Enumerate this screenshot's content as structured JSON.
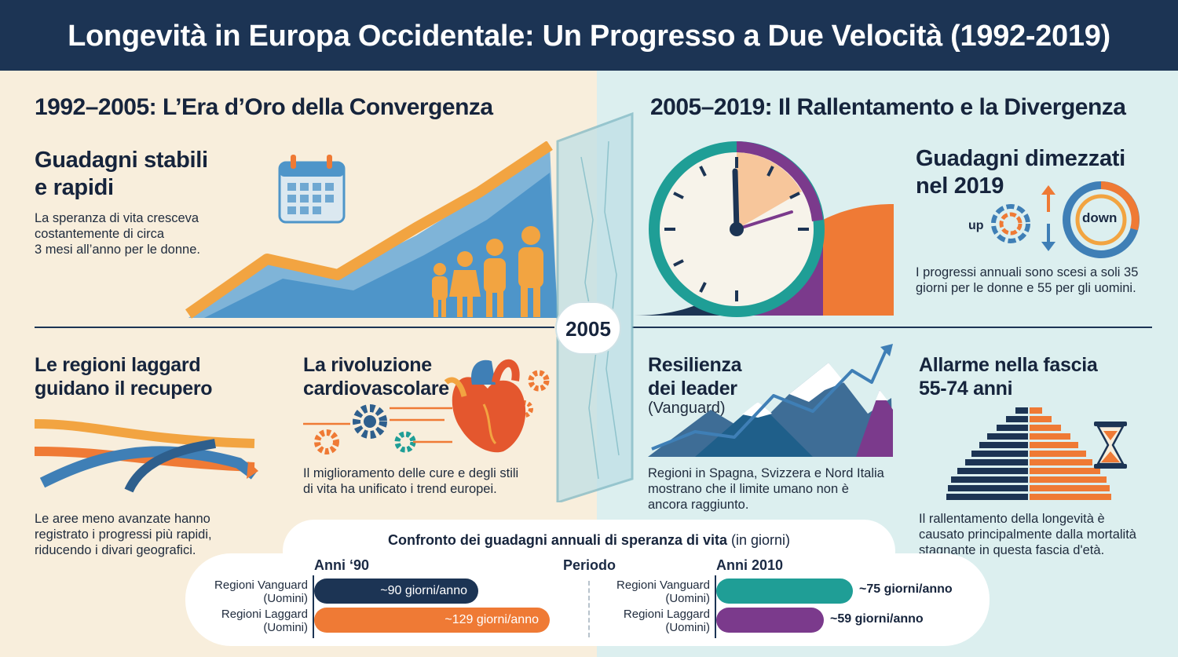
{
  "title": "Longevità in Europa Occidentale: Un Progresso a Due Velocità (1992-2019)",
  "left": {
    "heading": "1992–2005: L’Era d’Oro della Convergenza",
    "stable": {
      "title_line1": "Guadagni stabili",
      "title_line2": "e rapidi",
      "text_line1": "La speranza di vita cresceva",
      "text_line2": "costantemente di circa",
      "text_line3": "3 mesi all’anno per le donne."
    },
    "laggard": {
      "title_line1": "Le regioni laggard",
      "title_line2": "guidano il recupero",
      "text_line1": "Le aree meno avanzate hanno",
      "text_line2": "registrato i progressi più rapidi,",
      "text_line3": "riducendo i divari geografici."
    },
    "cardio": {
      "title_line1": "La rivoluzione",
      "title_line2": "cardiovascolare",
      "text_line1": "Il miglioramento delle cure e degli stili",
      "text_line2": "di vita ha unificato i trend europei."
    }
  },
  "divider_year": "2005",
  "right": {
    "heading": "2005–2019: Il Rallentamento e la Divergenza",
    "halved": {
      "title_line1": "Guadagni dimezzati",
      "title_line2": "nel 2019",
      "up_label": "up",
      "down_label": "down",
      "text_line1": "I progressi annuali sono scesi a soli 35",
      "text_line2": "giorni per le donne e 55 per gli uomini."
    },
    "leaders": {
      "title_line1": "Resilienza",
      "title_line2": "dei leader",
      "subtitle": "(Vanguard)",
      "text_line1": "Regioni in Spagna, Svizzera e Nord Italia",
      "text_line2": "mostrano che il limite umano non è",
      "text_line3": "ancora raggiunto."
    },
    "alarm": {
      "title_line1": "Allarme nella fascia",
      "title_line2": "55-74 anni",
      "text_line1": "Il rallentamento della longevità è",
      "text_line2": "causato principalmente dalla mortalità",
      "text_line3": "stagnante in questa fascia d'età."
    }
  },
  "comparison": {
    "title": "Confronto dei guadagni annuali di speranza di vita",
    "unit": "(in giorni)",
    "period_label": "Periodo",
    "col1": "Anni ‘90",
    "col2": "Anni 2010",
    "v90_l1": "Regioni Vanguard",
    "v90_l2": "(Uomini)",
    "g90_l1": "Regioni Laggard",
    "g90_l2": "(Uomini)",
    "v10_l1": "Regioni Vanguard",
    "v10_l2": "(Uomini)",
    "g10_l1": "Regioni Laggard",
    "g10_l2": "(Uomini)",
    "v90_text": "~90 giorni/anno",
    "g90_text": "~129 giorni/anno",
    "v10_text": "~75 giorni/anno",
    "g10_text": "~59 giorni/anno",
    "colors": {
      "vanguard90": "#1c3454",
      "laggard90": "#ef7a35",
      "vanguard10": "#1f9e96",
      "laggard10": "#7b3a8c"
    }
  },
  "chart_data": {
    "type": "bar",
    "title": "Confronto dei guadagni annuali di speranza di vita",
    "ylabel": "giorni/anno",
    "categories": [
      "Anni ‘90",
      "Anni 2010"
    ],
    "series": [
      {
        "name": "Regioni Vanguard (Uomini)",
        "values": [
          90,
          75
        ]
      },
      {
        "name": "Regioni Laggard (Uomini)",
        "values": [
          129,
          59
        ]
      }
    ]
  }
}
